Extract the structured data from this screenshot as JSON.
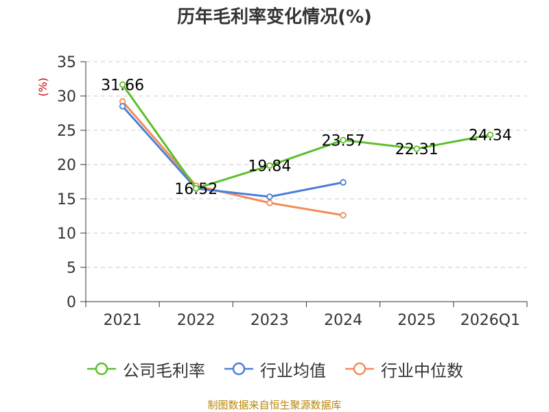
{
  "chart_data": {
    "type": "line",
    "title": "历年毛利率变化情况(%)",
    "ylabel": "(%)",
    "xlabel": "",
    "ylim": [
      0,
      35
    ],
    "yticks": [
      0,
      5,
      10,
      15,
      20,
      25,
      30,
      35
    ],
    "grid": true,
    "legend_position": "bottom",
    "categories": [
      "2021",
      "2022",
      "2023",
      "2024",
      "2025",
      "2026Q1"
    ],
    "series": [
      {
        "name": "公司毛利率",
        "color": "#5cbf2a",
        "values": [
          31.66,
          16.52,
          19.84,
          23.57,
          22.31,
          24.34
        ],
        "labels": [
          "31.66",
          "16.52",
          "19.84",
          "23.57",
          "22.31",
          "24.34"
        ]
      },
      {
        "name": "行业均值",
        "color": "#4b7fd6",
        "values": [
          28.5,
          16.5,
          15.3,
          17.4,
          null,
          null
        ]
      },
      {
        "name": "行业中位数",
        "color": "#f28c5a",
        "values": [
          29.2,
          16.9,
          14.4,
          12.6,
          null,
          null
        ]
      }
    ]
  },
  "source": "制图数据来自恒生聚源数据库"
}
